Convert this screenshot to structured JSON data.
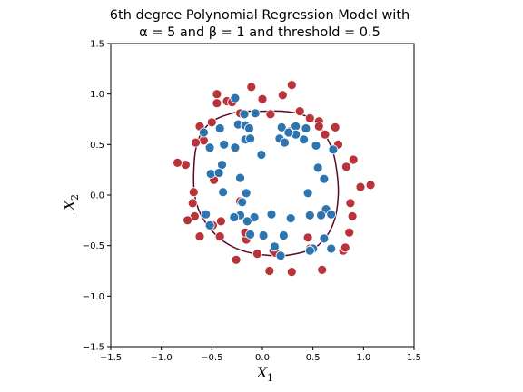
{
  "chart_data": {
    "type": "scatter",
    "title_line1": "6th degree Polynomial Regression Model with",
    "title_line2": "α = 5 and β = 1 and threshold = 0.5",
    "xlabel": "X",
    "xlabel_sub": "1",
    "ylabel": "X",
    "ylabel_sub": "2",
    "xlim": [
      -1.5,
      1.5
    ],
    "ylim": [
      -1.5,
      1.5
    ],
    "xticks": [
      -1.5,
      -1.0,
      -0.5,
      0.0,
      0.5,
      1.0,
      1.5
    ],
    "yticks": [
      -1.5,
      -1.0,
      -0.5,
      0.0,
      0.5,
      1.0,
      1.5
    ],
    "xtick_labels": [
      "−1.5",
      "−1.0",
      "−0.5",
      "0.0",
      "0.5",
      "1.0",
      "1.5"
    ],
    "ytick_labels": [
      "−1.5",
      "−1.0",
      "−0.5",
      "0.0",
      "0.5",
      "1.0",
      "1.5"
    ],
    "grid": false,
    "colors": {
      "class0": "#b8333a",
      "class1": "#2e75b0",
      "boundary": "#5a0a22"
    },
    "series": [
      {
        "class": 0,
        "color": "#b8333a",
        "points": [
          [
            -0.11,
            1.07
          ],
          [
            -0.35,
            0.93
          ],
          [
            -0.45,
            1.0
          ],
          [
            0.29,
            1.09
          ],
          [
            0.0,
            0.95
          ],
          [
            0.2,
            0.99
          ],
          [
            -0.45,
            0.91
          ],
          [
            -0.5,
            0.72
          ],
          [
            0.37,
            0.83
          ],
          [
            0.47,
            0.76
          ],
          [
            -0.3,
            0.92
          ],
          [
            -0.62,
            0.68
          ],
          [
            0.56,
            0.73
          ],
          [
            0.56,
            0.68
          ],
          [
            -0.22,
            0.81
          ],
          [
            -0.58,
            0.54
          ],
          [
            -0.66,
            0.52
          ],
          [
            0.75,
            0.5
          ],
          [
            0.72,
            0.67
          ],
          [
            0.62,
            0.6
          ],
          [
            0.08,
            0.8
          ],
          [
            0.27,
            0.63
          ],
          [
            -0.76,
            0.3
          ],
          [
            -0.84,
            0.32
          ],
          [
            0.9,
            0.35
          ],
          [
            0.83,
            0.28
          ],
          [
            -0.68,
            0.03
          ],
          [
            0.97,
            0.08
          ],
          [
            1.07,
            0.1
          ],
          [
            -0.69,
            -0.08
          ],
          [
            0.87,
            -0.08
          ],
          [
            -0.67,
            -0.21
          ],
          [
            -0.74,
            -0.25
          ],
          [
            0.89,
            -0.21
          ],
          [
            -0.49,
            -0.3
          ],
          [
            0.8,
            -0.55
          ],
          [
            -0.62,
            -0.41
          ],
          [
            -0.22,
            -0.06
          ],
          [
            -0.41,
            -0.26
          ],
          [
            -0.42,
            -0.41
          ],
          [
            0.82,
            -0.52
          ],
          [
            0.86,
            -0.37
          ],
          [
            -0.16,
            -0.44
          ],
          [
            -0.17,
            -0.37
          ],
          [
            0.11,
            -0.55
          ],
          [
            0.13,
            -0.57
          ],
          [
            -0.26,
            -0.64
          ],
          [
            0.07,
            -0.75
          ],
          [
            0.29,
            -0.76
          ],
          [
            0.59,
            -0.74
          ],
          [
            0.45,
            -0.42
          ],
          [
            -0.05,
            -0.58
          ],
          [
            -0.48,
            0.15
          ],
          [
            0.47,
            -0.53
          ]
        ]
      },
      {
        "class": 1,
        "color": "#2e75b0",
        "points": [
          [
            -0.27,
            0.96
          ],
          [
            -0.18,
            0.8
          ],
          [
            -0.07,
            0.81
          ],
          [
            -0.24,
            0.7
          ],
          [
            -0.17,
            0.69
          ],
          [
            -0.42,
            0.66
          ],
          [
            -0.13,
            0.66
          ],
          [
            0.19,
            0.67
          ],
          [
            0.33,
            0.68
          ],
          [
            0.43,
            0.66
          ],
          [
            0.33,
            0.6
          ],
          [
            -0.58,
            0.62
          ],
          [
            0.26,
            0.62
          ],
          [
            0.41,
            0.55
          ],
          [
            0.17,
            0.56
          ],
          [
            0.22,
            0.52
          ],
          [
            -0.17,
            0.55
          ],
          [
            -0.12,
            0.56
          ],
          [
            -0.52,
            0.47
          ],
          [
            -0.38,
            0.5
          ],
          [
            -0.27,
            0.47
          ],
          [
            0.7,
            0.45
          ],
          [
            0.53,
            0.49
          ],
          [
            -0.4,
            0.3
          ],
          [
            -0.01,
            0.4
          ],
          [
            -0.51,
            0.21
          ],
          [
            -0.43,
            0.22
          ],
          [
            -0.22,
            0.17
          ],
          [
            0.55,
            0.27
          ],
          [
            0.61,
            0.16
          ],
          [
            -0.39,
            0.03
          ],
          [
            -0.16,
            0.02
          ],
          [
            0.45,
            0.02
          ],
          [
            -0.2,
            -0.07
          ],
          [
            0.63,
            -0.14
          ],
          [
            -0.56,
            -0.19
          ],
          [
            -0.22,
            -0.2
          ],
          [
            0.68,
            -0.19
          ],
          [
            -0.28,
            -0.22
          ],
          [
            -0.08,
            -0.22
          ],
          [
            0.09,
            -0.19
          ],
          [
            0.28,
            -0.23
          ],
          [
            0.58,
            -0.2
          ],
          [
            0.47,
            -0.2
          ],
          [
            -0.52,
            -0.3
          ],
          [
            -0.15,
            -0.26
          ],
          [
            -0.12,
            -0.39
          ],
          [
            0.01,
            -0.4
          ],
          [
            0.21,
            -0.4
          ],
          [
            0.61,
            -0.43
          ],
          [
            0.5,
            -0.53
          ],
          [
            0.12,
            -0.51
          ],
          [
            0.68,
            -0.53
          ],
          [
            0.47,
            -0.55
          ],
          [
            0.18,
            -0.6
          ]
        ]
      }
    ],
    "boundary": [
      [
        0.0,
        0.83
      ],
      [
        0.2,
        0.83
      ],
      [
        0.38,
        0.8
      ],
      [
        0.52,
        0.73
      ],
      [
        0.62,
        0.6
      ],
      [
        0.7,
        0.42
      ],
      [
        0.74,
        0.2
      ],
      [
        0.75,
        0.0
      ],
      [
        0.72,
        -0.22
      ],
      [
        0.64,
        -0.4
      ],
      [
        0.52,
        -0.52
      ],
      [
        0.38,
        -0.57
      ],
      [
        0.2,
        -0.6
      ],
      [
        0.0,
        -0.59
      ],
      [
        -0.2,
        -0.55
      ],
      [
        -0.38,
        -0.46
      ],
      [
        -0.52,
        -0.33
      ],
      [
        -0.62,
        -0.17
      ],
      [
        -0.67,
        0.0
      ],
      [
        -0.68,
        0.2
      ],
      [
        -0.66,
        0.45
      ],
      [
        -0.6,
        0.62
      ],
      [
        -0.48,
        0.74
      ],
      [
        -0.3,
        0.81
      ],
      [
        -0.15,
        0.83
      ]
    ]
  }
}
